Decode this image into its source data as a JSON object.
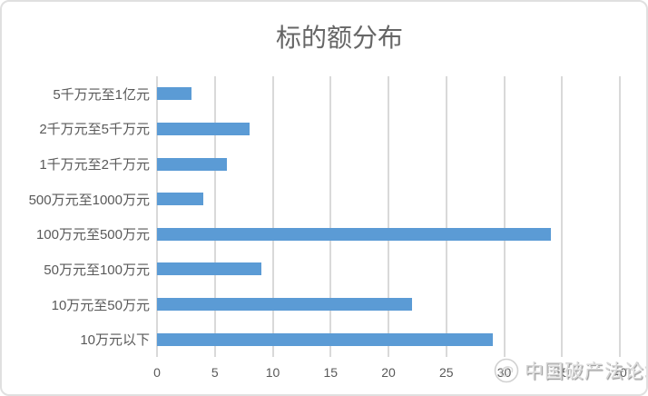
{
  "chart_data": {
    "type": "bar",
    "orientation": "horizontal",
    "title": "标的额分布",
    "categories": [
      "5千万元至1亿元",
      "2千万元至5千万元",
      "1千万元至2千万元",
      "500万元至1000万元",
      "100万元至500万元",
      "50万元至100万元",
      "10万元至50万元",
      "10万元以下"
    ],
    "values": [
      3,
      8,
      6,
      4,
      34,
      9,
      22,
      29
    ],
    "xlabel": "",
    "ylabel": "",
    "xlim": [
      0,
      40
    ],
    "xticks": [
      "0",
      "5",
      "10",
      "15",
      "20",
      "25",
      "30",
      "35",
      "40"
    ],
    "grid": "vertical-only",
    "legend": "none",
    "bar_color": "#5b9bd5",
    "gridline_color": "#d9d9d9",
    "tick_label_color": "#595959",
    "title_color": "#666666"
  },
  "watermark": {
    "text": "中国破产法论坛",
    "logo": "circular-emblem"
  }
}
